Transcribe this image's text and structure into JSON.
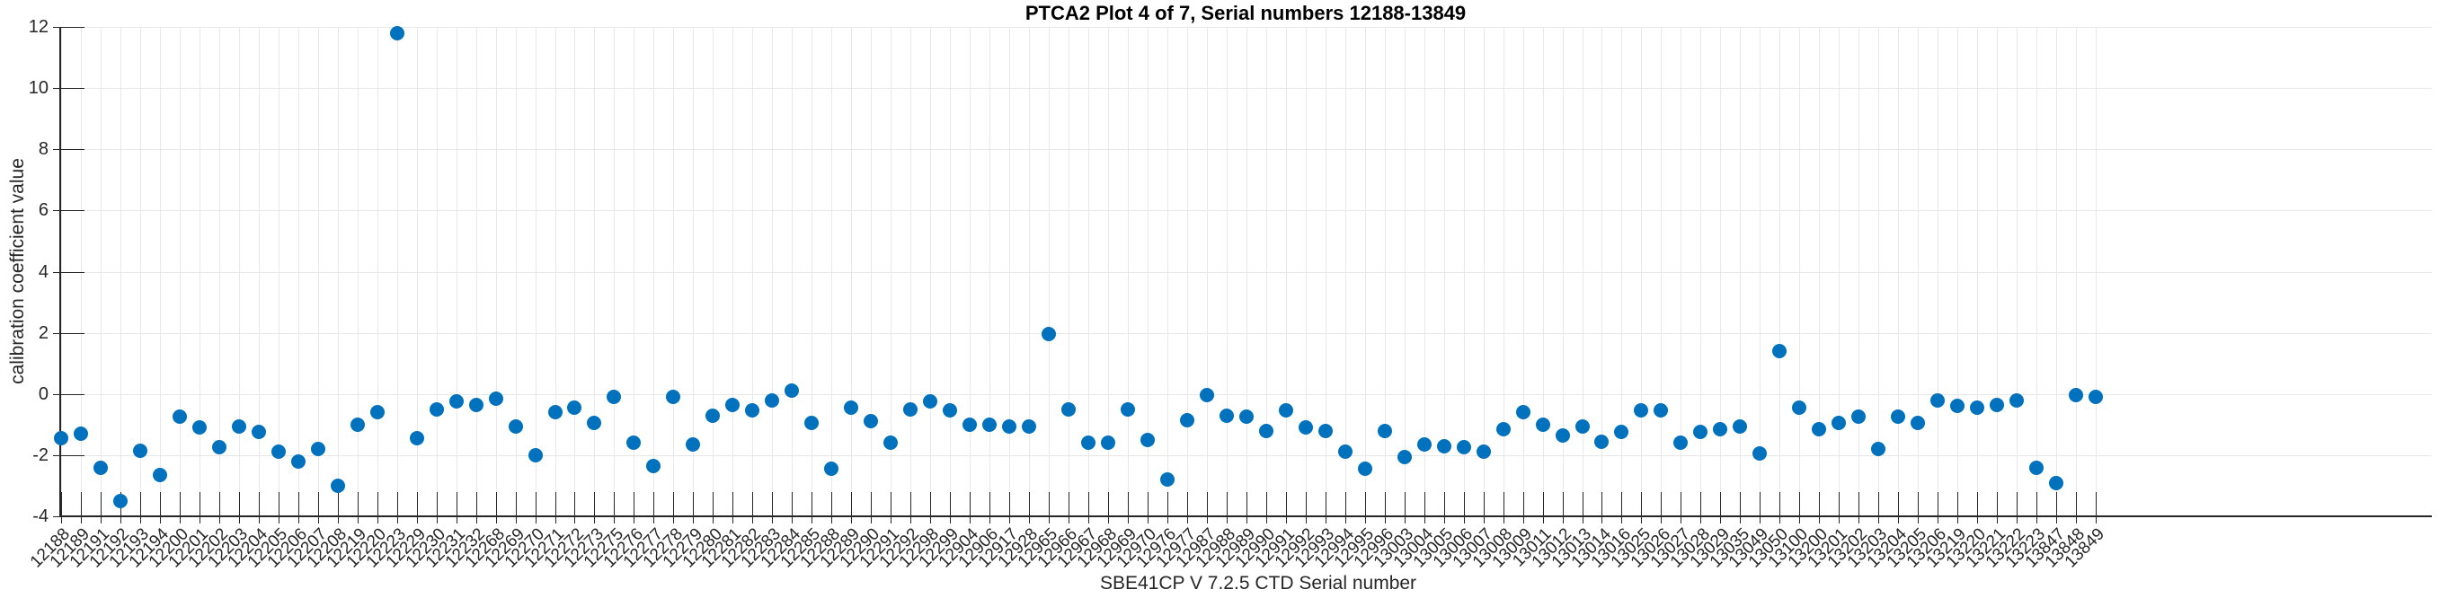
{
  "title": "PTCA2 Plot 4 of 7, Serial numbers 12188-13849",
  "chart_data": {
    "type": "scatter",
    "title": "PTCA2 Plot 4 of 7, Serial numbers 12188-13849",
    "xlabel": "SBE41CP V 7.2.5 CTD Serial number",
    "ylabel": "calibration coefficient value",
    "ylim": [
      -4,
      12
    ],
    "y_ticks": [
      -4,
      -2,
      0,
      2,
      4,
      6,
      8,
      10,
      12
    ],
    "grid": true,
    "legend": "none",
    "marker_color": "#0072BD",
    "axis_color": "#262626",
    "grid_color": "#e8e8e8",
    "categories": [
      "12188",
      "12189",
      "12191",
      "12192",
      "12193",
      "12194",
      "12200",
      "12201",
      "12202",
      "12203",
      "12204",
      "12205",
      "12206",
      "12207",
      "12208",
      "12219",
      "12220",
      "12223",
      "12229",
      "12230",
      "12231",
      "12232",
      "12268",
      "12269",
      "12270",
      "12271",
      "12272",
      "12273",
      "12275",
      "12276",
      "12277",
      "12278",
      "12279",
      "12280",
      "12281",
      "12282",
      "12283",
      "12284",
      "12285",
      "12288",
      "12289",
      "12290",
      "12291",
      "12292",
      "12298",
      "12299",
      "12904",
      "12906",
      "12917",
      "12928",
      "12965",
      "12966",
      "12967",
      "12968",
      "12969",
      "12970",
      "12976",
      "12977",
      "12987",
      "12988",
      "12989",
      "12990",
      "12991",
      "12992",
      "12993",
      "12994",
      "12995",
      "12996",
      "13003",
      "13004",
      "13005",
      "13006",
      "13007",
      "13008",
      "13009",
      "13011",
      "13012",
      "13013",
      "13014",
      "13016",
      "13025",
      "13026",
      "13027",
      "13028",
      "13029",
      "13035",
      "13049",
      "13050",
      "13100",
      "13200",
      "13201",
      "13202",
      "13203",
      "13204",
      "13205",
      "13206",
      "13219",
      "13220",
      "13221",
      "13222",
      "13223",
      "13847",
      "13848",
      "13849"
    ],
    "values": [
      -1.45,
      -1.3,
      -2.4,
      -3.5,
      -1.85,
      -2.65,
      -0.75,
      -1.1,
      -1.75,
      -1.05,
      -1.25,
      -1.9,
      -2.2,
      -1.8,
      -3.0,
      -1.0,
      -0.6,
      11.8,
      -1.45,
      -0.5,
      -0.25,
      -0.35,
      -0.15,
      -1.05,
      -2.0,
      -0.6,
      -0.45,
      -0.95,
      -0.1,
      -1.6,
      -2.35,
      -0.1,
      -1.65,
      -0.7,
      -0.35,
      -0.55,
      -0.2,
      0.1,
      -0.95,
      -2.45,
      -0.45,
      -0.9,
      -1.6,
      -0.5,
      -0.25,
      -0.55,
      -1.0,
      -1.0,
      -1.05,
      -1.05,
      1.95,
      -0.5,
      -1.6,
      -1.6,
      -0.5,
      -1.5,
      -2.8,
      -0.85,
      -0.05,
      -0.7,
      -0.75,
      -1.2,
      -0.55,
      -1.1,
      -1.2,
      -1.9,
      -2.45,
      -1.2,
      -2.05,
      -1.65,
      -1.7,
      -1.75,
      -1.9,
      -1.15,
      -0.6,
      -1.0,
      -1.35,
      -1.05,
      -1.55,
      -1.25,
      -0.55,
      -0.55,
      -1.6,
      -1.25,
      -1.15,
      -1.05,
      -1.95,
      1.4,
      -0.45,
      -1.15,
      -0.95,
      -0.75,
      -1.8,
      -0.75,
      -0.95,
      -0.2,
      -0.4,
      -0.45,
      -0.35,
      -0.2,
      -2.4,
      -2.9,
      -0.05,
      -0.1
    ]
  }
}
